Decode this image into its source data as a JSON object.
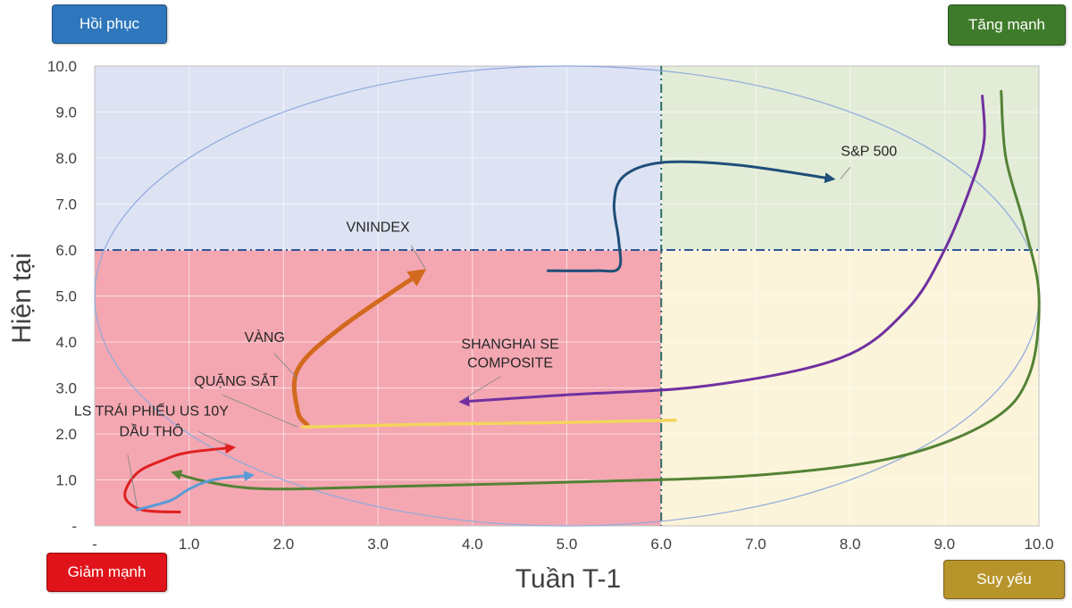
{
  "quadrant_buttons": {
    "top_left": {
      "label": "Hồi phục",
      "color": "#2f77bd"
    },
    "top_right": {
      "label": "Tăng mạnh",
      "color": "#3e7b2a"
    },
    "bottom_left": {
      "label": "Giảm mạnh",
      "color": "#e0131a"
    },
    "bottom_right": {
      "label": "Suy yếu",
      "color": "#b8952b"
    }
  },
  "quadrant_colors": {
    "top_left": "#dde3f3",
    "top_right": "#e2ecd7",
    "bottom_left": "#f4a7b1",
    "bottom_right": "#fbf4da"
  },
  "chart_data": {
    "type": "line",
    "title": "",
    "xlabel": "Tuần T-1",
    "ylabel": "Hiện tại",
    "xlim": [
      0,
      10
    ],
    "ylim": [
      0,
      10
    ],
    "x_ticks": [
      "-",
      "1.0",
      "2.0",
      "3.0",
      "4.0",
      "5.0",
      "6.0",
      "7.0",
      "8.0",
      "9.0",
      "10.0"
    ],
    "y_ticks": [
      "-",
      "1.0",
      "2.0",
      "3.0",
      "4.0",
      "5.0",
      "6.0",
      "7.0",
      "8.0",
      "9.0",
      "10.0"
    ],
    "grid": true,
    "thresholds": {
      "x": 6.0,
      "y": 6.0
    },
    "reference_ellipse": {
      "cx": 5.0,
      "cy": 5.0,
      "rx": 5.0,
      "ry": 5.0
    },
    "series": [
      {
        "name": "S&P 500",
        "color": "#1f4e79",
        "points": [
          [
            4.8,
            5.55
          ],
          [
            5.3,
            5.55
          ],
          [
            5.55,
            5.6
          ],
          [
            5.55,
            6.2
          ],
          [
            5.5,
            7.0
          ],
          [
            5.6,
            7.6
          ],
          [
            6.0,
            7.9
          ],
          [
            6.8,
            7.85
          ],
          [
            7.8,
            7.55
          ]
        ]
      },
      {
        "name": "VNINDEX",
        "color": "#d2691e",
        "points": [
          [
            2.25,
            2.2
          ],
          [
            2.15,
            2.5
          ],
          [
            2.15,
            3.4
          ],
          [
            2.6,
            4.3
          ],
          [
            3.45,
            5.5
          ]
        ]
      },
      {
        "name": "VÀNG",
        "color": "#f4d55c",
        "points": [
          [
            2.2,
            2.15
          ],
          [
            3.8,
            2.22
          ],
          [
            5.0,
            2.25
          ],
          [
            6.15,
            2.3
          ]
        ]
      },
      {
        "name": "SHANGHAI SE COMPOSITE",
        "color": "#7030a0",
        "points": [
          [
            9.4,
            9.35
          ],
          [
            9.42,
            8.4
          ],
          [
            9.3,
            7.5
          ],
          [
            9.0,
            6.0
          ],
          [
            8.6,
            4.7
          ],
          [
            7.9,
            3.65
          ],
          [
            6.5,
            3.05
          ],
          [
            5.0,
            2.85
          ],
          [
            3.9,
            2.7
          ]
        ]
      },
      {
        "name": "QUẶNG SẮT",
        "color": "#548235",
        "points": [
          [
            9.6,
            9.45
          ],
          [
            9.65,
            8.0
          ],
          [
            9.85,
            6.5
          ],
          [
            10.0,
            5.0
          ],
          [
            9.9,
            3.3
          ],
          [
            9.5,
            2.3
          ],
          [
            8.5,
            1.5
          ],
          [
            7.0,
            1.1
          ],
          [
            5.0,
            0.95
          ],
          [
            3.0,
            0.85
          ],
          [
            2.0,
            0.8
          ],
          [
            1.5,
            0.85
          ],
          [
            1.1,
            1.0
          ],
          [
            0.85,
            1.15
          ]
        ]
      },
      {
        "name": "LS TRÁI PHIẾU US 10Y",
        "color": "#e02020",
        "points": [
          [
            0.9,
            0.3
          ],
          [
            0.5,
            0.35
          ],
          [
            0.32,
            0.65
          ],
          [
            0.45,
            1.15
          ],
          [
            0.75,
            1.45
          ],
          [
            1.0,
            1.6
          ],
          [
            1.45,
            1.7
          ]
        ]
      },
      {
        "name": "DẦU THÔ",
        "color": "#5b9bd5",
        "points": [
          [
            0.45,
            0.35
          ],
          [
            0.8,
            0.55
          ],
          [
            1.0,
            0.8
          ],
          [
            1.25,
            1.0
          ],
          [
            1.65,
            1.1
          ]
        ]
      }
    ],
    "annotations": [
      {
        "text": "S&P 500",
        "x": 8.2,
        "y": 8.05,
        "anchor": "middle"
      },
      {
        "text": "VNINDEX",
        "x": 3.0,
        "y": 6.4,
        "anchor": "middle"
      },
      {
        "text": "VÀNG",
        "x": 1.8,
        "y": 4.0,
        "anchor": "middle"
      },
      {
        "text": "SHANGHAI SE",
        "x": 4.4,
        "y": 3.85,
        "anchor": "middle"
      },
      {
        "text": "COMPOSITE",
        "x": 4.4,
        "y": 3.45,
        "anchor": "middle"
      },
      {
        "text": "QUẶNG SẮT",
        "x": 1.5,
        "y": 3.05,
        "anchor": "middle"
      },
      {
        "text": "LS TRÁI PHIẾU US 10Y",
        "x": 0.6,
        "y": 2.4,
        "anchor": "middle"
      },
      {
        "text": "DẦU THÔ",
        "x": 0.6,
        "y": 1.95,
        "anchor": "middle"
      }
    ]
  }
}
